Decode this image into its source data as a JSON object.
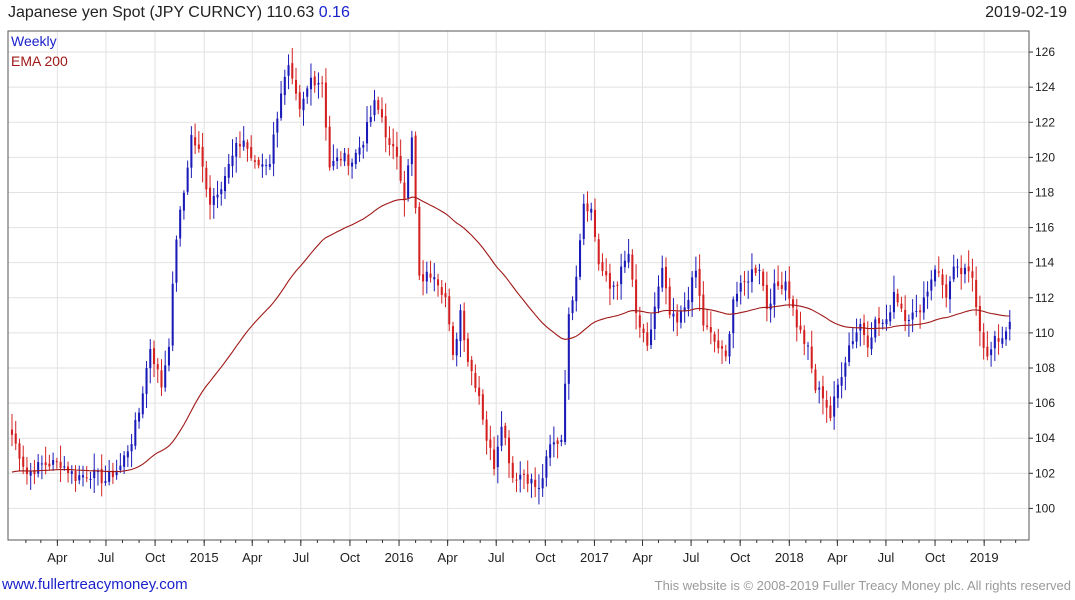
{
  "header": {
    "title": "Japanese yen Spot (JPY CURNCY)",
    "last": "110.63",
    "change": "0.16",
    "date": "2019-02-19"
  },
  "footer": {
    "link": "www.fullertreacymoney.com",
    "copyright": "This website is © 2008-2019 Fuller Treacy Money plc. All rights reserved"
  },
  "colors": {
    "up": "#1a1ab8",
    "down": "#d42020",
    "ema": "#a01818",
    "grid": "#e2e2e2",
    "axis": "#333333",
    "legend_weekly": "#1a22cc",
    "legend_ema": "#a01818"
  },
  "chart_data": {
    "type": "candlestick",
    "frequency": "Weekly",
    "legend": [
      {
        "name": "Weekly",
        "color": "#1a22cc"
      },
      {
        "name": "EMA 200",
        "color": "#a01818"
      }
    ],
    "legend_position": "top-left",
    "y_axis_side": "right",
    "ylim": [
      98.2,
      127.2
    ],
    "y_ticks": [
      100,
      102,
      104,
      106,
      108,
      110,
      112,
      114,
      116,
      118,
      120,
      122,
      124,
      126
    ],
    "grid": true,
    "x_ticks": [
      {
        "label": "Apr",
        "date": "2014-04-01"
      },
      {
        "label": "Jul",
        "date": "2014-07-01"
      },
      {
        "label": "Oct",
        "date": "2014-10-01"
      },
      {
        "label": "2015",
        "date": "2015-01-01"
      },
      {
        "label": "Apr",
        "date": "2015-04-01"
      },
      {
        "label": "Jul",
        "date": "2015-07-01"
      },
      {
        "label": "Oct",
        "date": "2015-10-01"
      },
      {
        "label": "2016",
        "date": "2016-01-01"
      },
      {
        "label": "Apr",
        "date": "2016-04-01"
      },
      {
        "label": "Jul",
        "date": "2016-07-01"
      },
      {
        "label": "Oct",
        "date": "2016-10-01"
      },
      {
        "label": "2017",
        "date": "2017-01-01"
      },
      {
        "label": "Apr",
        "date": "2017-04-01"
      },
      {
        "label": "Jul",
        "date": "2017-07-01"
      },
      {
        "label": "Oct",
        "date": "2017-10-01"
      },
      {
        "label": "2018",
        "date": "2018-01-01"
      },
      {
        "label": "Apr",
        "date": "2018-04-01"
      },
      {
        "label": "Jul",
        "date": "2018-07-01"
      },
      {
        "label": "Oct",
        "date": "2018-10-01"
      },
      {
        "label": "2019",
        "date": "2019-01-01"
      }
    ],
    "xlim": [
      "2014-01-06",
      "2019-03-11"
    ],
    "close_keypoints": [
      [
        "2014-01-06",
        104.2
      ],
      [
        "2014-02-03",
        102.0
      ],
      [
        "2014-03-03",
        102.5
      ],
      [
        "2014-04-07",
        102.6
      ],
      [
        "2014-05-05",
        101.8
      ],
      [
        "2014-06-02",
        102.0
      ],
      [
        "2014-06-30",
        101.6
      ],
      [
        "2014-07-28",
        102.4
      ],
      [
        "2014-08-18",
        103.9
      ],
      [
        "2014-09-01",
        105.5
      ],
      [
        "2014-09-22",
        109.2
      ],
      [
        "2014-10-13",
        107.0
      ],
      [
        "2014-10-27",
        109.5
      ],
      [
        "2014-11-10",
        115.5
      ],
      [
        "2014-11-24",
        118.0
      ],
      [
        "2014-12-08",
        121.2
      ],
      [
        "2014-12-22",
        120.3
      ],
      [
        "2015-01-12",
        117.5
      ],
      [
        "2015-02-02",
        118.5
      ],
      [
        "2015-03-02",
        120.5
      ],
      [
        "2015-03-16",
        121.0
      ],
      [
        "2015-04-06",
        119.5
      ],
      [
        "2015-05-04",
        119.8
      ],
      [
        "2015-05-25",
        123.8
      ],
      [
        "2015-06-08",
        125.0
      ],
      [
        "2015-06-29",
        122.5
      ],
      [
        "2015-07-20",
        124.5
      ],
      [
        "2015-08-10",
        124.3
      ],
      [
        "2015-08-24",
        119.5
      ],
      [
        "2015-09-14",
        120.0
      ],
      [
        "2015-10-05",
        119.8
      ],
      [
        "2015-10-26",
        121.0
      ],
      [
        "2015-11-16",
        123.0
      ],
      [
        "2015-11-30",
        122.3
      ],
      [
        "2015-12-14",
        120.5
      ],
      [
        "2015-12-28",
        120.2
      ],
      [
        "2016-01-11",
        117.8
      ],
      [
        "2016-01-25",
        121.0
      ],
      [
        "2016-02-08",
        113.0
      ],
      [
        "2016-03-07",
        113.5
      ],
      [
        "2016-03-28",
        112.0
      ],
      [
        "2016-04-11",
        108.5
      ],
      [
        "2016-04-25",
        111.3
      ],
      [
        "2016-05-09",
        108.5
      ],
      [
        "2016-05-30",
        106.5
      ],
      [
        "2016-06-13",
        104.0
      ],
      [
        "2016-06-27",
        102.5
      ],
      [
        "2016-07-11",
        105.0
      ],
      [
        "2016-08-01",
        101.8
      ],
      [
        "2016-08-22",
        102.0
      ],
      [
        "2016-09-05",
        101.5
      ],
      [
        "2016-09-19",
        101.0
      ],
      [
        "2016-10-10",
        103.5
      ],
      [
        "2016-10-31",
        104.0
      ],
      [
        "2016-11-14",
        110.8
      ],
      [
        "2016-11-28",
        113.5
      ],
      [
        "2016-12-12",
        117.5
      ],
      [
        "2016-12-26",
        117.0
      ],
      [
        "2017-01-09",
        114.0
      ],
      [
        "2017-01-30",
        112.5
      ],
      [
        "2017-02-13",
        113.0
      ],
      [
        "2017-03-06",
        114.5
      ],
      [
        "2017-03-20",
        111.0
      ],
      [
        "2017-04-10",
        109.0
      ],
      [
        "2017-04-24",
        111.5
      ],
      [
        "2017-05-08",
        113.5
      ],
      [
        "2017-05-22",
        111.0
      ],
      [
        "2017-06-05",
        110.5
      ],
      [
        "2017-06-19",
        111.5
      ],
      [
        "2017-07-10",
        113.5
      ],
      [
        "2017-07-24",
        110.5
      ],
      [
        "2017-08-14",
        109.5
      ],
      [
        "2017-09-04",
        108.5
      ],
      [
        "2017-09-18",
        112.0
      ],
      [
        "2017-10-02",
        112.5
      ],
      [
        "2017-10-23",
        113.5
      ],
      [
        "2017-11-06",
        113.8
      ],
      [
        "2017-11-20",
        111.5
      ],
      [
        "2017-12-04",
        112.5
      ],
      [
        "2017-12-25",
        113.0
      ],
      [
        "2018-01-15",
        110.5
      ],
      [
        "2018-02-05",
        109.0
      ],
      [
        "2018-02-19",
        106.8
      ],
      [
        "2018-03-05",
        106.5
      ],
      [
        "2018-03-19",
        105.2
      ],
      [
        "2018-04-02",
        107.0
      ],
      [
        "2018-04-23",
        109.3
      ],
      [
        "2018-05-14",
        110.5
      ],
      [
        "2018-05-28",
        109.5
      ],
      [
        "2018-06-11",
        110.6
      ],
      [
        "2018-07-02",
        110.5
      ],
      [
        "2018-07-16",
        112.4
      ],
      [
        "2018-08-06",
        111.0
      ],
      [
        "2018-08-27",
        111.0
      ],
      [
        "2018-09-17",
        112.5
      ],
      [
        "2018-10-01",
        113.8
      ],
      [
        "2018-10-22",
        112.2
      ],
      [
        "2018-11-05",
        113.5
      ],
      [
        "2018-11-26",
        113.4
      ],
      [
        "2018-12-10",
        113.2
      ],
      [
        "2018-12-24",
        110.3
      ],
      [
        "2019-01-07",
        108.5
      ],
      [
        "2019-01-21",
        109.5
      ],
      [
        "2019-02-04",
        109.8
      ],
      [
        "2019-02-18",
        110.63
      ]
    ]
  }
}
